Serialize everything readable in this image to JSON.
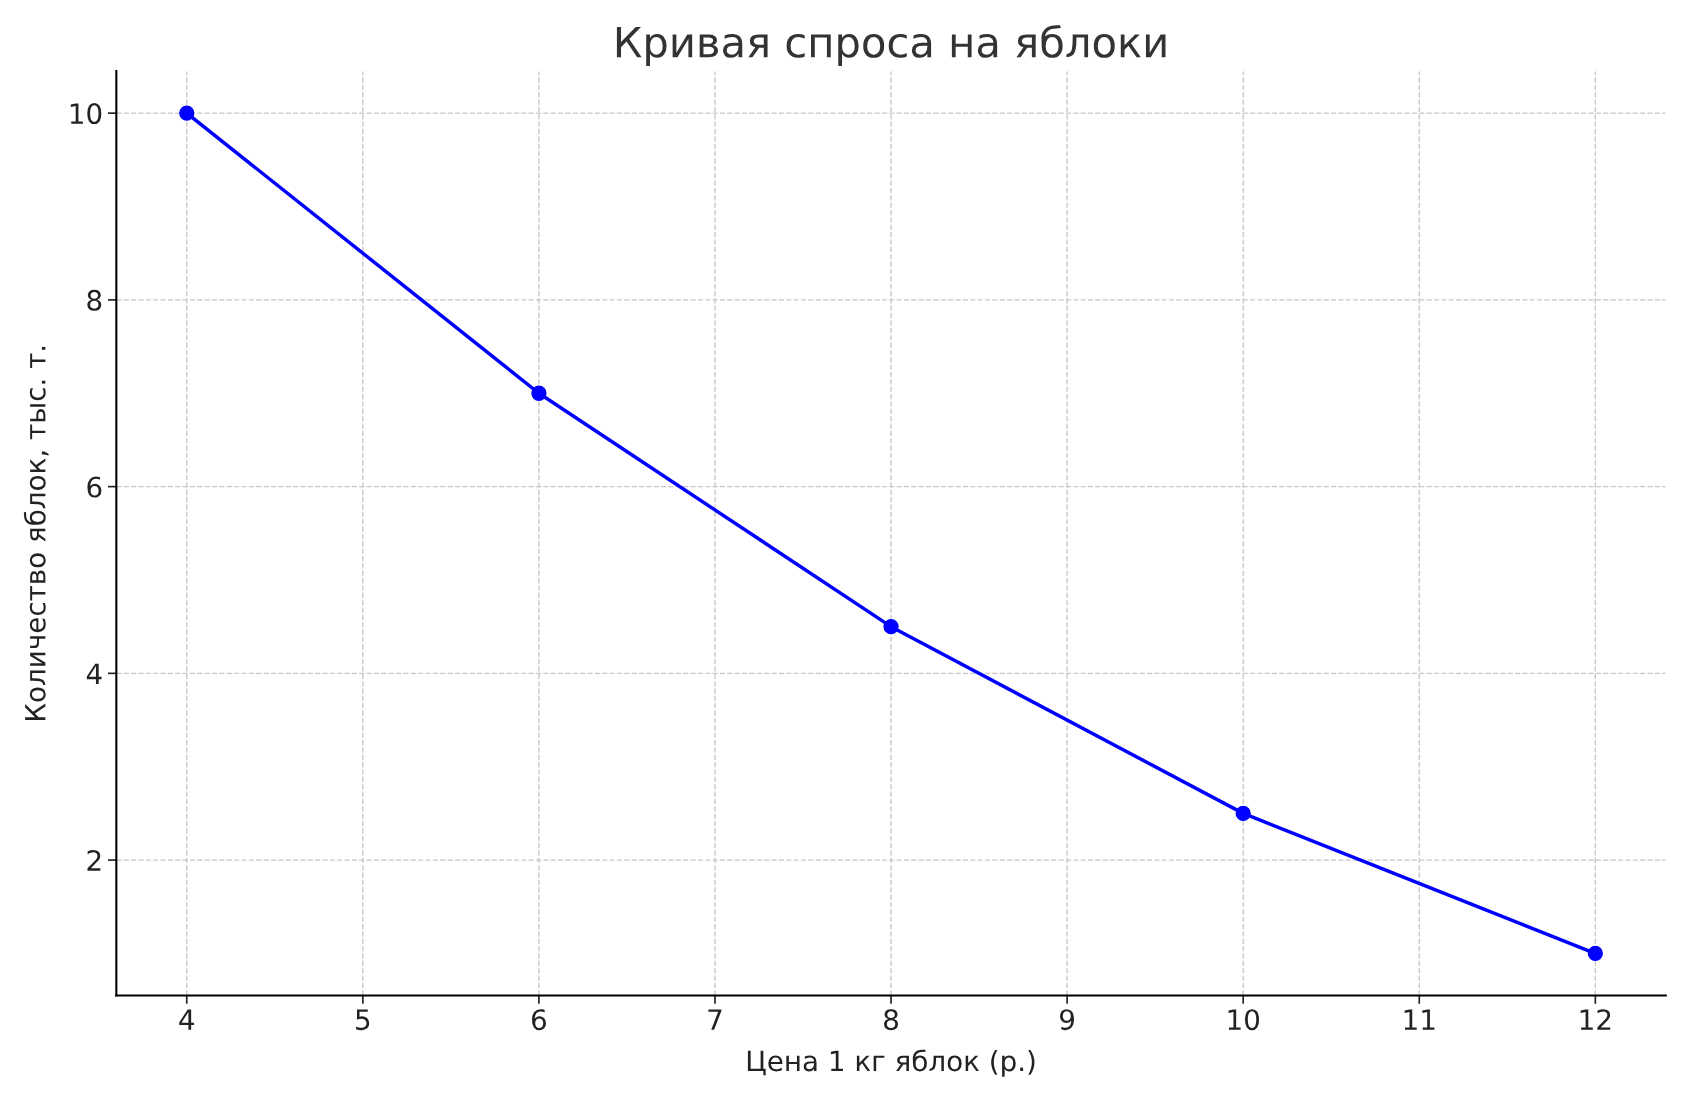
{
  "chart_data": {
    "type": "line",
    "title": "Кривая спроса на яблоки",
    "xlabel": "Цена 1 кг яблок (р.)",
    "ylabel": "Количество яблок, тыс. т.",
    "x": [
      4,
      6,
      8,
      10,
      12
    ],
    "series": [
      {
        "color": "#0000ff",
        "values": [
          10,
          7,
          4.5,
          2.5,
          1
        ]
      }
    ],
    "xlim": [
      3.6,
      12.4
    ],
    "ylim": [
      0.55,
      10.45
    ],
    "xticks": [
      4,
      5,
      6,
      7,
      8,
      9,
      10,
      11,
      12
    ],
    "yticks": [
      2,
      4,
      6,
      8,
      10
    ],
    "grid": true,
    "line_style": "solid",
    "marker": "circle",
    "legend": false
  }
}
